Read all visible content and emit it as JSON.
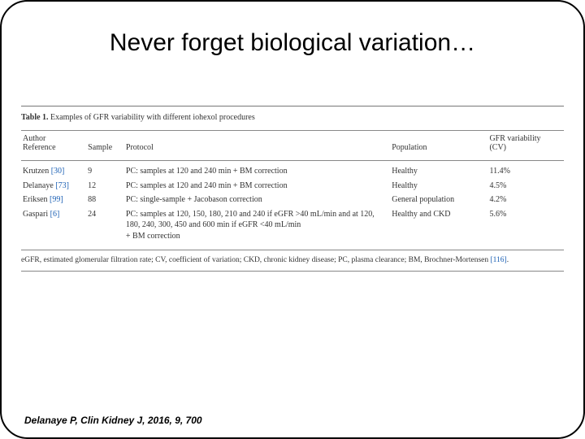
{
  "title": "Never forget biological variation…",
  "caption_prefix": "Table 1.",
  "caption_text": "Examples of GFR variability with different iohexol procedures",
  "headers": {
    "author": "Author\nReference",
    "sample": "Sample",
    "protocol": "Protocol",
    "population": "Population",
    "cv": "GFR variability\n(CV)"
  },
  "rows": [
    {
      "author": "Krutzen",
      "ref": "[30]",
      "sample": "9",
      "protocol": "PC: samples at 120 and 240 min + BM correction",
      "population": "Healthy",
      "cv": "11.4%"
    },
    {
      "author": "Delanaye",
      "ref": "[73]",
      "sample": "12",
      "protocol": "PC: samples at 120 and 240 min + BM correction",
      "population": "Healthy",
      "cv": "4.5%"
    },
    {
      "author": "Eriksen",
      "ref": "[99]",
      "sample": "88",
      "protocol": "PC: single-sample + Jacobason correction",
      "population": "General population",
      "cv": "4.2%"
    },
    {
      "author": "Gaspari",
      "ref": "[6]",
      "sample": "24",
      "protocol": "PC: samples at 120, 150, 180, 210 and 240 if eGFR >40 mL/min and at 120, 180, 240, 300, 450 and 600 min if eGFR <40 mL/min\n+ BM correction",
      "population": "Healthy and CKD",
      "cv": "5.6%"
    }
  ],
  "footnote": {
    "text": "eGFR, estimated glomerular filtration rate; CV, coefficient of variation; CKD, chronic kidney disease; PC, plasma clearance; BM, Brochner-Mortensen ",
    "ref": "[116]",
    "tail": "."
  },
  "citation": "Delanaye P, Clin Kidney J, 2016, 9, 700",
  "colors": {
    "ref_link": "#1a5fb4",
    "rule": "#888888",
    "text": "#333333",
    "background": "#ffffff"
  }
}
